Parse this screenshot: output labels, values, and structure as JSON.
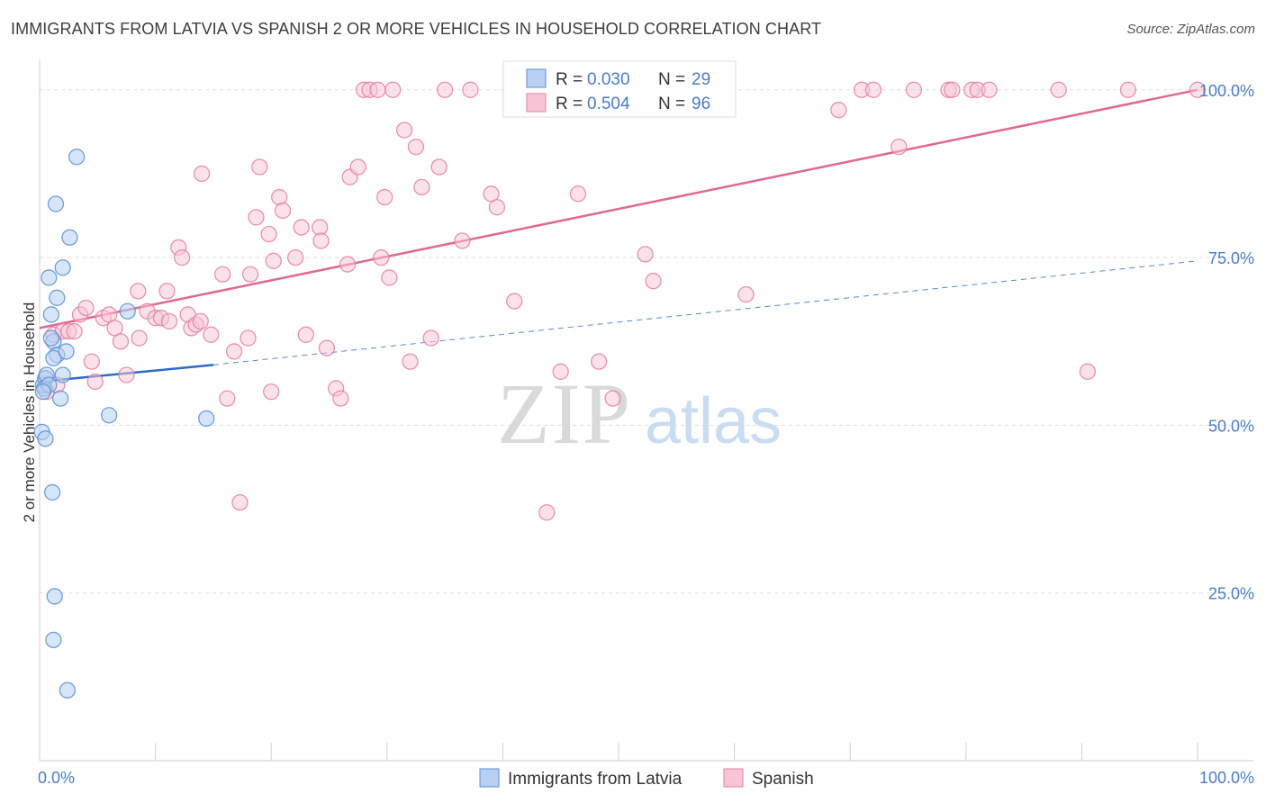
{
  "header": {
    "title": "IMMIGRANTS FROM LATVIA VS SPANISH 2 OR MORE VEHICLES IN HOUSEHOLD CORRELATION CHART",
    "source": "Source: ZipAtlas.com"
  },
  "watermark": {
    "zip": "ZIP",
    "atlas": "atlas"
  },
  "colors": {
    "blue": "#5b8fd6",
    "blue_fill": "#b7d0f3",
    "blue_line": "#2b6cc4",
    "pink": "#e57fa1",
    "pink_fill": "#f7c5d5",
    "pink_line": "#e06892",
    "tick_label": "#4a7cc7",
    "grid": "#dddddd"
  },
  "chart_data": {
    "type": "scatter",
    "title": "IMMIGRANTS FROM LATVIA VS SPANISH 2 OR MORE VEHICLES IN HOUSEHOLD CORRELATION CHART",
    "xlabel": "",
    "ylabel": "2 or more Vehicles in Household",
    "xlim": [
      0,
      100
    ],
    "ylim": [
      0,
      104
    ],
    "x_tick_labels": [
      {
        "value": 0,
        "label": "0.0%"
      },
      {
        "value": 100,
        "label": "100.0%"
      }
    ],
    "y_tick_labels": [
      {
        "value": 25,
        "label": "25.0%"
      },
      {
        "value": 50,
        "label": "50.0%"
      },
      {
        "value": 75,
        "label": "75.0%"
      },
      {
        "value": 100,
        "label": "100.0%"
      }
    ],
    "grid": true,
    "legend_position": "bottom",
    "stats": [
      {
        "r_label": "R = ",
        "r_value": "0.030",
        "n_label": "N = ",
        "n_value": "29"
      },
      {
        "r_label": "R = ",
        "r_value": "0.504",
        "n_label": "N = ",
        "n_value": "96"
      }
    ],
    "series": [
      {
        "name": "Immigrants from Latvia",
        "color": "#5b8fd6",
        "trend": {
          "x": [
            0,
            15
          ],
          "y": [
            56.5,
            59.0
          ],
          "dashed_extension_to": [
            100,
            74.5
          ]
        },
        "points": [
          [
            0.3,
            56
          ],
          [
            0.5,
            57
          ],
          [
            0.4,
            55.5
          ],
          [
            0.6,
            57.5
          ],
          [
            0.2,
            49
          ],
          [
            0.5,
            48
          ],
          [
            0.8,
            72
          ],
          [
            1.0,
            66.5
          ],
          [
            1.2,
            62.5
          ],
          [
            1.5,
            60.5
          ],
          [
            1.2,
            60
          ],
          [
            1.5,
            69
          ],
          [
            2.0,
            73.5
          ],
          [
            2.3,
            61
          ],
          [
            2.0,
            57.5
          ],
          [
            1.8,
            54
          ],
          [
            1.4,
            83
          ],
          [
            2.6,
            78
          ],
          [
            3.2,
            90
          ],
          [
            1.1,
            40
          ],
          [
            1.3,
            24.5
          ],
          [
            1.2,
            18
          ],
          [
            2.4,
            10.5
          ],
          [
            6.0,
            51.5
          ],
          [
            7.6,
            67
          ],
          [
            14.4,
            51
          ],
          [
            0.8,
            56
          ],
          [
            0.3,
            55
          ],
          [
            1.0,
            63
          ]
        ]
      },
      {
        "name": "Spanish",
        "color": "#e57fa1",
        "trend": {
          "x": [
            0,
            100
          ],
          "y": [
            64.5,
            100
          ]
        },
        "points": [
          [
            0.5,
            57
          ],
          [
            0.6,
            55
          ],
          [
            1.2,
            63.5
          ],
          [
            1.5,
            56
          ],
          [
            2.0,
            64
          ],
          [
            2.5,
            64
          ],
          [
            3.0,
            64
          ],
          [
            3.5,
            66.5
          ],
          [
            4.0,
            67.5
          ],
          [
            4.5,
            59.5
          ],
          [
            4.8,
            56.5
          ],
          [
            5.5,
            66
          ],
          [
            6.0,
            66.5
          ],
          [
            6.5,
            64.5
          ],
          [
            7.0,
            62.5
          ],
          [
            7.5,
            57.5
          ],
          [
            8.5,
            70
          ],
          [
            8.6,
            63
          ],
          [
            9.3,
            67
          ],
          [
            10.0,
            66
          ],
          [
            10.5,
            66
          ],
          [
            11.0,
            70
          ],
          [
            11.2,
            65.5
          ],
          [
            12.0,
            76.5
          ],
          [
            12.3,
            75
          ],
          [
            12.8,
            66.5
          ],
          [
            13.1,
            64.5
          ],
          [
            13.5,
            65
          ],
          [
            13.9,
            65.5
          ],
          [
            14.0,
            87.5
          ],
          [
            14.8,
            63.5
          ],
          [
            15.8,
            72.5
          ],
          [
            16.2,
            54
          ],
          [
            16.8,
            61
          ],
          [
            17.3,
            38.5
          ],
          [
            18.0,
            63
          ],
          [
            18.2,
            72.5
          ],
          [
            18.7,
            81
          ],
          [
            19.0,
            88.5
          ],
          [
            19.8,
            78.5
          ],
          [
            20.2,
            74.5
          ],
          [
            20.7,
            84
          ],
          [
            21.0,
            82
          ],
          [
            22.1,
            75
          ],
          [
            22.6,
            79.5
          ],
          [
            23.0,
            63.5
          ],
          [
            24.2,
            79.5
          ],
          [
            24.3,
            77.5
          ],
          [
            24.8,
            61.5
          ],
          [
            25.6,
            55.5
          ],
          [
            26.6,
            74
          ],
          [
            26.8,
            87
          ],
          [
            27.5,
            88.5
          ],
          [
            28.0,
            100
          ],
          [
            28.5,
            100
          ],
          [
            29.2,
            100
          ],
          [
            29.5,
            75
          ],
          [
            29.8,
            84
          ],
          [
            30.2,
            72
          ],
          [
            30.5,
            100
          ],
          [
            31.5,
            94
          ],
          [
            32.0,
            59.5
          ],
          [
            32.5,
            91.5
          ],
          [
            33.0,
            85.5
          ],
          [
            33.8,
            63
          ],
          [
            34.5,
            88.5
          ],
          [
            35.0,
            100
          ],
          [
            36.5,
            77.5
          ],
          [
            37.2,
            100
          ],
          [
            39.0,
            84.5
          ],
          [
            39.5,
            82.5
          ],
          [
            41.0,
            68.5
          ],
          [
            43.8,
            37
          ],
          [
            45.0,
            58
          ],
          [
            46.5,
            84.5
          ],
          [
            48.3,
            59.5
          ],
          [
            49.5,
            54
          ],
          [
            52.3,
            75.5
          ],
          [
            53.0,
            71.5
          ],
          [
            61.0,
            69.5
          ],
          [
            69.0,
            97
          ],
          [
            71.0,
            100
          ],
          [
            72.0,
            100
          ],
          [
            74.2,
            91.5
          ],
          [
            75.5,
            100
          ],
          [
            78.5,
            100
          ],
          [
            78.8,
            100
          ],
          [
            80.5,
            100
          ],
          [
            81.0,
            100
          ],
          [
            82.0,
            100
          ],
          [
            88.0,
            100
          ],
          [
            90.5,
            58
          ],
          [
            94.0,
            100
          ],
          [
            100.0,
            100
          ],
          [
            26.0,
            54
          ],
          [
            20.0,
            55
          ]
        ]
      }
    ]
  }
}
